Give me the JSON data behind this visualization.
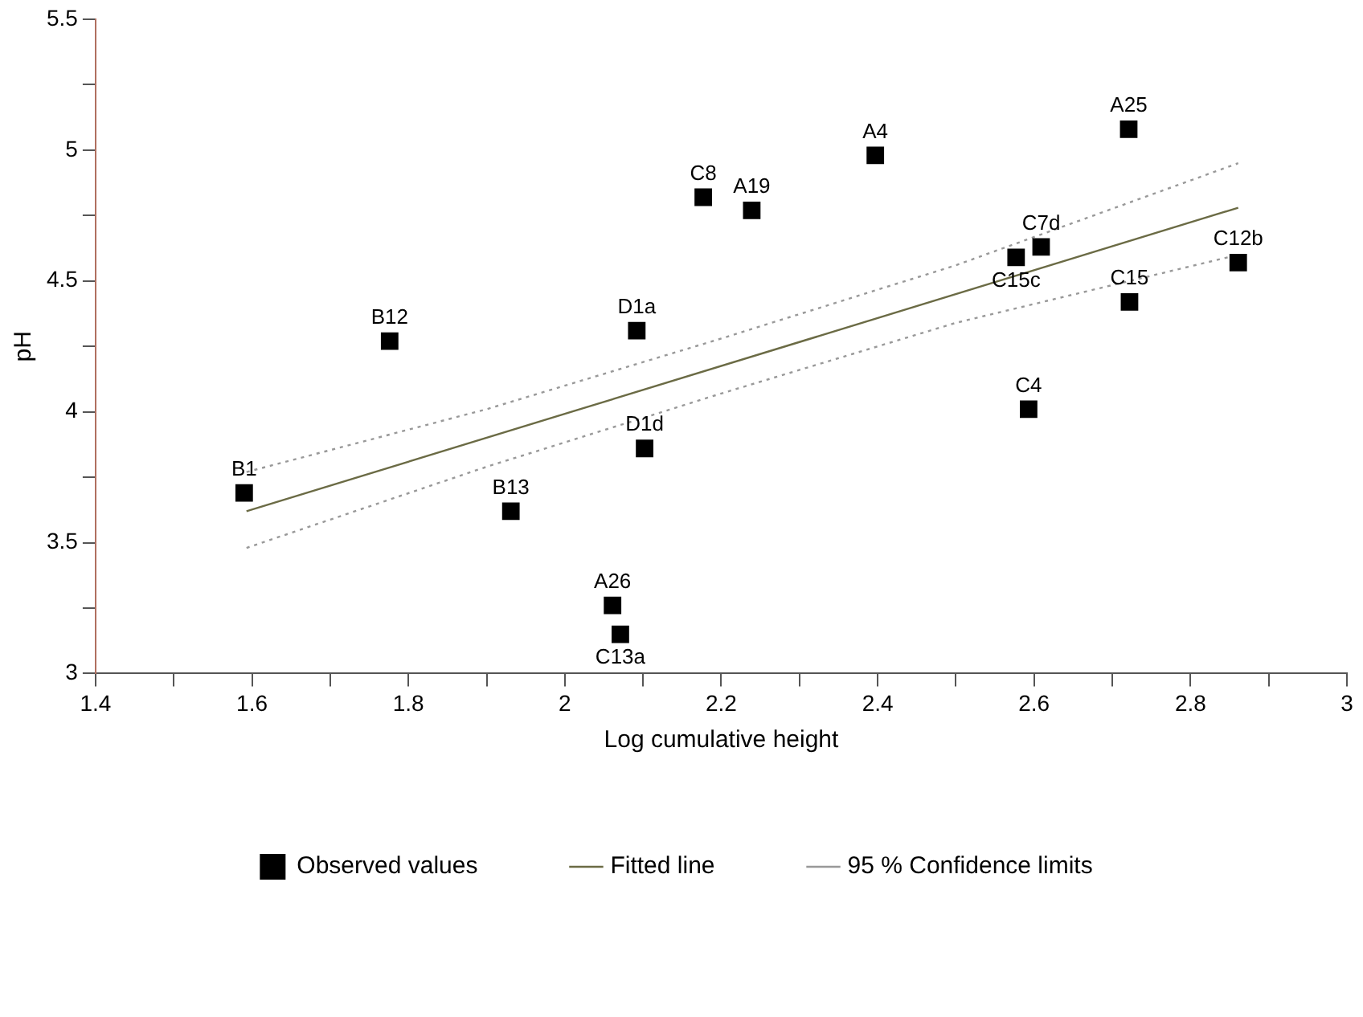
{
  "chart_data": {
    "type": "scatter",
    "xlabel": "Log cumulative height",
    "ylabel": "pH",
    "xlim": [
      1.4,
      3
    ],
    "ylim": [
      3,
      5.5
    ],
    "xticks": [
      1.4,
      {
        "value": 1.5,
        "label": null
      },
      1.6,
      {
        "value": 1.7,
        "label": null
      },
      1.8,
      {
        "value": 1.9,
        "label": null
      },
      2,
      {
        "value": 2.1,
        "label": null
      },
      2.2,
      {
        "value": 2.3,
        "label": null
      },
      2.4,
      {
        "value": 2.5,
        "label": null
      },
      2.6,
      {
        "value": 2.7,
        "label": null
      },
      2.8,
      {
        "value": 2.9,
        "label": null
      },
      3
    ],
    "yticks": [
      3,
      {
        "value": 3.25,
        "label": null
      },
      3.5,
      {
        "value": 3.75,
        "label": null
      },
      4,
      {
        "value": 4.25,
        "label": null
      },
      4.5,
      {
        "value": 4.75,
        "label": null
      },
      5,
      {
        "value": 5.25,
        "label": null
      },
      5.5
    ],
    "grid": false,
    "legend": "bottom",
    "series": [
      {
        "name": "Observed values",
        "type": "scatter",
        "color": "#000000",
        "marker": "square",
        "x": [
          1.59,
          1.776,
          2.092,
          2.177,
          2.239,
          2.397,
          2.721,
          2.577,
          2.609,
          2.861,
          2.722,
          2.593,
          2.102,
          1.931,
          2.061,
          2.071
        ],
        "values": [
          3.69,
          4.27,
          4.31,
          4.82,
          4.77,
          4.98,
          5.08,
          4.59,
          4.63,
          4.57,
          4.42,
          4.01,
          3.86,
          3.62,
          3.26,
          3.15
        ]
      },
      {
        "name": "Fitted line",
        "type": "line",
        "color": "#6b6b45",
        "line_style": "solid",
        "marker": "none",
        "x": [
          1.593,
          2.861
        ],
        "values": [
          3.62,
          4.78
        ]
      },
      {
        "name": "95 % Confidence limits",
        "type": "line",
        "color": "#999999",
        "line_style": "dotted",
        "marker": "none",
        "x": [
          1.593,
          1.9,
          2.2,
          2.5,
          2.861
        ],
        "values": [
          3.77,
          4.01,
          4.28,
          4.56,
          4.95
        ]
      },
      {
        "type": "line",
        "color": "#999999",
        "line_style": "dotted",
        "marker": "none",
        "x": [
          1.593,
          1.9,
          2.2,
          2.5,
          2.861
        ],
        "values": [
          3.48,
          3.79,
          4.07,
          4.34,
          4.6
        ]
      }
    ],
    "annotations": [
      {
        "text": "B1",
        "x": 1.59,
        "y": 3.69
      },
      {
        "text": "B12",
        "x": 1.776,
        "y": 4.27
      },
      {
        "text": "D1a",
        "x": 2.092,
        "y": 4.31
      },
      {
        "text": "C8",
        "x": 2.177,
        "y": 4.82
      },
      {
        "text": "A19",
        "x": 2.239,
        "y": 4.77
      },
      {
        "text": "A4",
        "x": 2.397,
        "y": 4.98
      },
      {
        "text": "A25",
        "x": 2.721,
        "y": 5.08
      },
      {
        "text": "C15c",
        "x": 2.577,
        "y": 4.59
      },
      {
        "text": "C7d",
        "x": 2.609,
        "y": 4.63
      },
      {
        "text": "C12b",
        "x": 2.861,
        "y": 4.57
      },
      {
        "text": "C15",
        "x": 2.722,
        "y": 4.42
      },
      {
        "text": "C4",
        "x": 2.593,
        "y": 4.01
      },
      {
        "text": "D1d",
        "x": 2.102,
        "y": 3.86
      },
      {
        "text": "B13",
        "x": 1.931,
        "y": 3.62
      },
      {
        "text": "A26",
        "x": 2.061,
        "y": 3.26
      },
      {
        "text": "C13a",
        "x": 2.071,
        "y": 3.15
      }
    ]
  }
}
